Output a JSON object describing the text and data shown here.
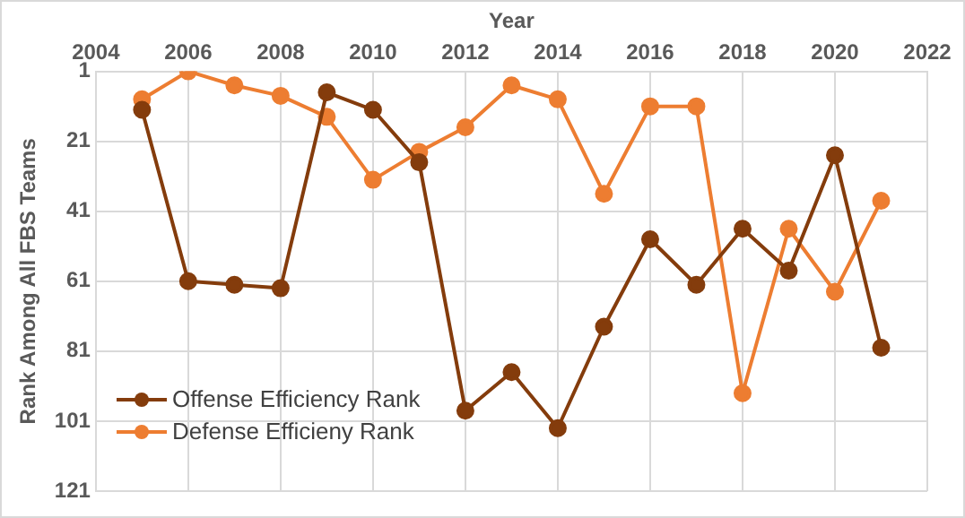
{
  "chart_data": {
    "type": "line",
    "xlabel": "Year",
    "ylabel": "Rank Among All FBS Teams",
    "x": [
      2005,
      2006,
      2007,
      2008,
      2009,
      2010,
      2011,
      2012,
      2013,
      2014,
      2015,
      2016,
      2017,
      2018,
      2019,
      2020,
      2021
    ],
    "series": [
      {
        "name": "Offense Efficiency Rank",
        "color": "#843c0c",
        "values": [
          12,
          61,
          62,
          63,
          7,
          12,
          27,
          98,
          87,
          103,
          74,
          49,
          62,
          46,
          58,
          25,
          80
        ]
      },
      {
        "name": "Defense Efficieny Rank",
        "color": "#ed7d31",
        "values": [
          9,
          1,
          5,
          8,
          14,
          32,
          24,
          17,
          5,
          9,
          36,
          11,
          11,
          93,
          46,
          64,
          38
        ]
      }
    ],
    "xlim": [
      2004,
      2022
    ],
    "xticks": [
      2004,
      2006,
      2008,
      2010,
      2012,
      2014,
      2016,
      2018,
      2020,
      2022
    ],
    "ylim": [
      121,
      1
    ],
    "yticks": [
      1,
      21,
      41,
      61,
      81,
      101,
      121
    ],
    "grid": true,
    "legend": "bottom left",
    "marker": "circle",
    "line_style": "solid"
  }
}
